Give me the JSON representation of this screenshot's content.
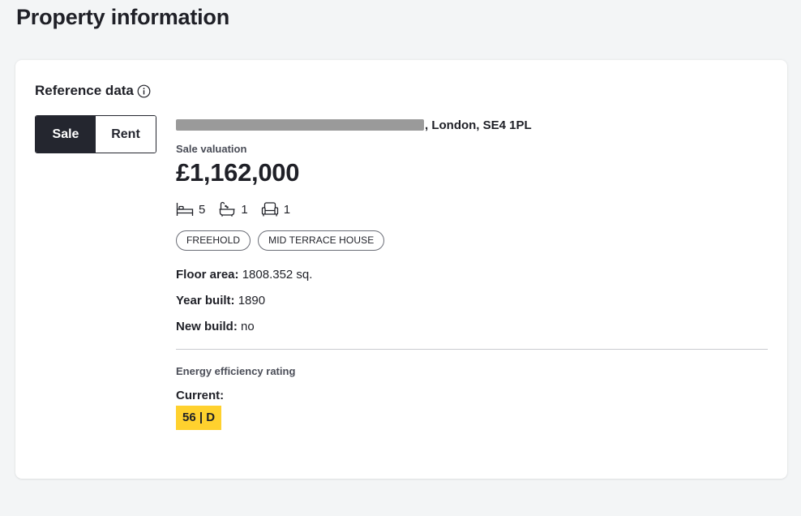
{
  "page": {
    "title": "Property information"
  },
  "reference": {
    "title": "Reference data",
    "info_icon": "info-circle-icon",
    "toggle": {
      "sale_label": "Sale",
      "rent_label": "Rent",
      "selected": "Sale"
    }
  },
  "property": {
    "address_visible": ", London, SE4 1PL",
    "valuation_label": "Sale valuation",
    "valuation": "£1,162,000",
    "features": [
      {
        "icon": "bed-icon",
        "value": "5"
      },
      {
        "icon": "bath-icon",
        "value": "1"
      },
      {
        "icon": "armchair-icon",
        "value": "1"
      }
    ],
    "tags": [
      "FREEHOLD",
      "MID TERRACE HOUSE"
    ],
    "details": [
      {
        "key": "Floor area:",
        "value": "1808.352 sq."
      },
      {
        "key": "Year built:",
        "value": "1890"
      },
      {
        "key": "New build:",
        "value": "no"
      }
    ]
  },
  "energy": {
    "label": "Energy efficiency rating",
    "current_label": "Current:",
    "current_value": "56 | D",
    "color": "#ffd12e"
  }
}
